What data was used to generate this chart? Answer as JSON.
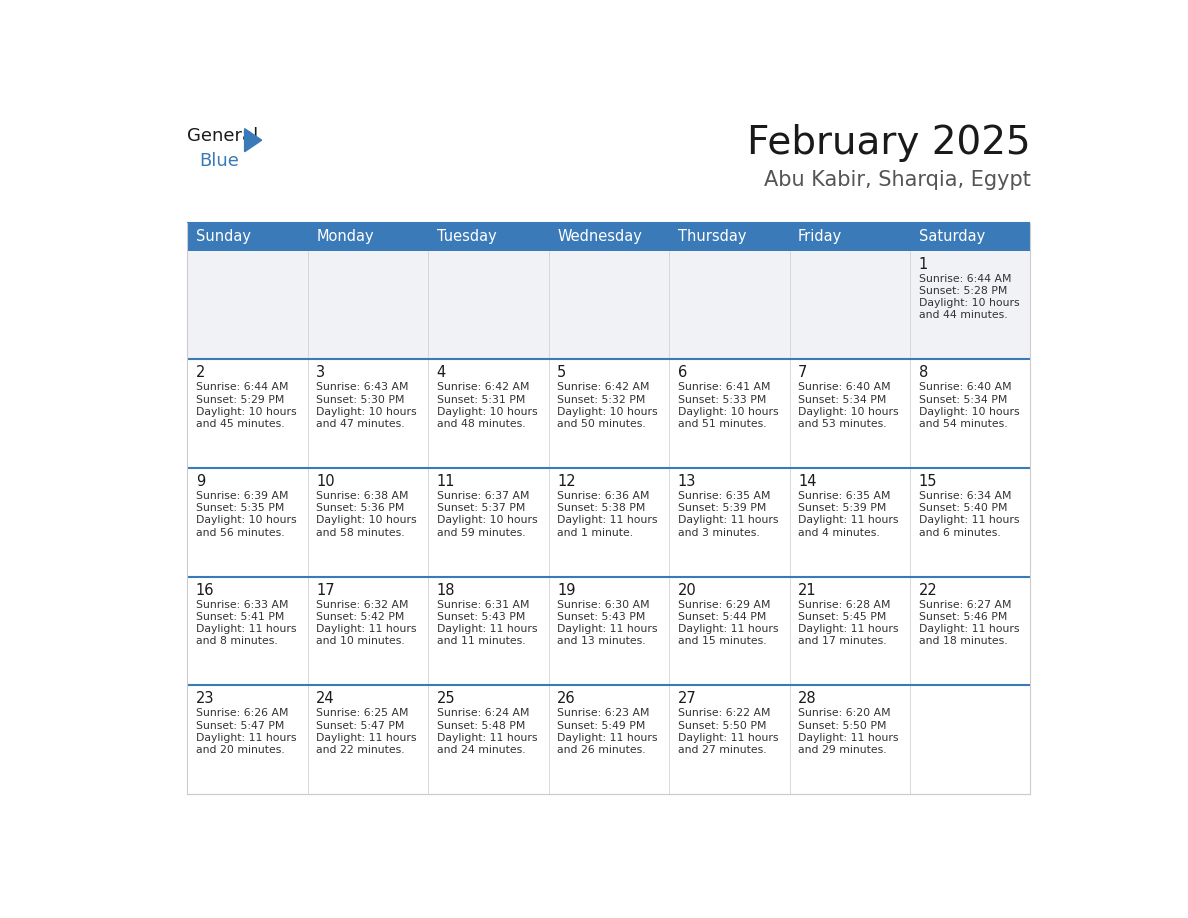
{
  "title": "February 2025",
  "subtitle": "Abu Kabir, Sharqia, Egypt",
  "days_of_week": [
    "Sunday",
    "Monday",
    "Tuesday",
    "Wednesday",
    "Thursday",
    "Friday",
    "Saturday"
  ],
  "header_bg": "#3a7ab8",
  "header_text": "#ffffff",
  "cell_bg_white": "#ffffff",
  "cell_bg_gray": "#f0f2f5",
  "border_top_color": "#3a7ab8",
  "border_side_color": "#cccccc",
  "text_color": "#333333",
  "day_num_color": "#1a1a1a",
  "title_color": "#1a1a1a",
  "subtitle_color": "#555555",
  "logo_general_color": "#1a1a1a",
  "logo_blue_color": "#3a7ab8",
  "calendar_data": [
    [
      null,
      null,
      null,
      null,
      null,
      null,
      {
        "day": 1,
        "sunrise": "6:44 AM",
        "sunset": "5:28 PM",
        "daylight_line1": "Daylight: 10 hours",
        "daylight_line2": "and 44 minutes."
      }
    ],
    [
      {
        "day": 2,
        "sunrise": "6:44 AM",
        "sunset": "5:29 PM",
        "daylight_line1": "Daylight: 10 hours",
        "daylight_line2": "and 45 minutes."
      },
      {
        "day": 3,
        "sunrise": "6:43 AM",
        "sunset": "5:30 PM",
        "daylight_line1": "Daylight: 10 hours",
        "daylight_line2": "and 47 minutes."
      },
      {
        "day": 4,
        "sunrise": "6:42 AM",
        "sunset": "5:31 PM",
        "daylight_line1": "Daylight: 10 hours",
        "daylight_line2": "and 48 minutes."
      },
      {
        "day": 5,
        "sunrise": "6:42 AM",
        "sunset": "5:32 PM",
        "daylight_line1": "Daylight: 10 hours",
        "daylight_line2": "and 50 minutes."
      },
      {
        "day": 6,
        "sunrise": "6:41 AM",
        "sunset": "5:33 PM",
        "daylight_line1": "Daylight: 10 hours",
        "daylight_line2": "and 51 minutes."
      },
      {
        "day": 7,
        "sunrise": "6:40 AM",
        "sunset": "5:34 PM",
        "daylight_line1": "Daylight: 10 hours",
        "daylight_line2": "and 53 minutes."
      },
      {
        "day": 8,
        "sunrise": "6:40 AM",
        "sunset": "5:34 PM",
        "daylight_line1": "Daylight: 10 hours",
        "daylight_line2": "and 54 minutes."
      }
    ],
    [
      {
        "day": 9,
        "sunrise": "6:39 AM",
        "sunset": "5:35 PM",
        "daylight_line1": "Daylight: 10 hours",
        "daylight_line2": "and 56 minutes."
      },
      {
        "day": 10,
        "sunrise": "6:38 AM",
        "sunset": "5:36 PM",
        "daylight_line1": "Daylight: 10 hours",
        "daylight_line2": "and 58 minutes."
      },
      {
        "day": 11,
        "sunrise": "6:37 AM",
        "sunset": "5:37 PM",
        "daylight_line1": "Daylight: 10 hours",
        "daylight_line2": "and 59 minutes."
      },
      {
        "day": 12,
        "sunrise": "6:36 AM",
        "sunset": "5:38 PM",
        "daylight_line1": "Daylight: 11 hours",
        "daylight_line2": "and 1 minute."
      },
      {
        "day": 13,
        "sunrise": "6:35 AM",
        "sunset": "5:39 PM",
        "daylight_line1": "Daylight: 11 hours",
        "daylight_line2": "and 3 minutes."
      },
      {
        "day": 14,
        "sunrise": "6:35 AM",
        "sunset": "5:39 PM",
        "daylight_line1": "Daylight: 11 hours",
        "daylight_line2": "and 4 minutes."
      },
      {
        "day": 15,
        "sunrise": "6:34 AM",
        "sunset": "5:40 PM",
        "daylight_line1": "Daylight: 11 hours",
        "daylight_line2": "and 6 minutes."
      }
    ],
    [
      {
        "day": 16,
        "sunrise": "6:33 AM",
        "sunset": "5:41 PM",
        "daylight_line1": "Daylight: 11 hours",
        "daylight_line2": "and 8 minutes."
      },
      {
        "day": 17,
        "sunrise": "6:32 AM",
        "sunset": "5:42 PM",
        "daylight_line1": "Daylight: 11 hours",
        "daylight_line2": "and 10 minutes."
      },
      {
        "day": 18,
        "sunrise": "6:31 AM",
        "sunset": "5:43 PM",
        "daylight_line1": "Daylight: 11 hours",
        "daylight_line2": "and 11 minutes."
      },
      {
        "day": 19,
        "sunrise": "6:30 AM",
        "sunset": "5:43 PM",
        "daylight_line1": "Daylight: 11 hours",
        "daylight_line2": "and 13 minutes."
      },
      {
        "day": 20,
        "sunrise": "6:29 AM",
        "sunset": "5:44 PM",
        "daylight_line1": "Daylight: 11 hours",
        "daylight_line2": "and 15 minutes."
      },
      {
        "day": 21,
        "sunrise": "6:28 AM",
        "sunset": "5:45 PM",
        "daylight_line1": "Daylight: 11 hours",
        "daylight_line2": "and 17 minutes."
      },
      {
        "day": 22,
        "sunrise": "6:27 AM",
        "sunset": "5:46 PM",
        "daylight_line1": "Daylight: 11 hours",
        "daylight_line2": "and 18 minutes."
      }
    ],
    [
      {
        "day": 23,
        "sunrise": "6:26 AM",
        "sunset": "5:47 PM",
        "daylight_line1": "Daylight: 11 hours",
        "daylight_line2": "and 20 minutes."
      },
      {
        "day": 24,
        "sunrise": "6:25 AM",
        "sunset": "5:47 PM",
        "daylight_line1": "Daylight: 11 hours",
        "daylight_line2": "and 22 minutes."
      },
      {
        "day": 25,
        "sunrise": "6:24 AM",
        "sunset": "5:48 PM",
        "daylight_line1": "Daylight: 11 hours",
        "daylight_line2": "and 24 minutes."
      },
      {
        "day": 26,
        "sunrise": "6:23 AM",
        "sunset": "5:49 PM",
        "daylight_line1": "Daylight: 11 hours",
        "daylight_line2": "and 26 minutes."
      },
      {
        "day": 27,
        "sunrise": "6:22 AM",
        "sunset": "5:50 PM",
        "daylight_line1": "Daylight: 11 hours",
        "daylight_line2": "and 27 minutes."
      },
      {
        "day": 28,
        "sunrise": "6:20 AM",
        "sunset": "5:50 PM",
        "daylight_line1": "Daylight: 11 hours",
        "daylight_line2": "and 29 minutes."
      },
      null
    ]
  ]
}
